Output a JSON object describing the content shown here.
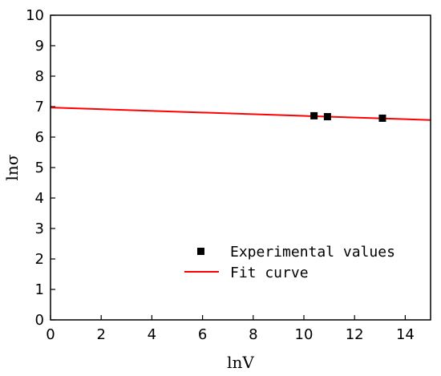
{
  "chart_data": {
    "type": "scatter",
    "title": "",
    "xlabel": "lnV",
    "ylabel": "lnσ",
    "xlim": [
      0,
      15
    ],
    "ylim": [
      0,
      10
    ],
    "x_ticks": [
      0,
      2,
      4,
      6,
      8,
      10,
      12,
      14
    ],
    "y_ticks": [
      0,
      1,
      2,
      3,
      4,
      5,
      6,
      7,
      8,
      9,
      10
    ],
    "grid": false,
    "legend_position": "bottom-right",
    "series": [
      {
        "name": "Experimental values",
        "kind": "scatter",
        "marker": "square",
        "color": "#000000",
        "x": [
          10.4,
          10.93,
          13.1
        ],
        "y": [
          6.7,
          6.67,
          6.62
        ]
      },
      {
        "name": "Fit curve",
        "kind": "line",
        "color": "#ff0000",
        "x": [
          0,
          15
        ],
        "y": [
          6.97,
          6.56
        ]
      }
    ]
  }
}
